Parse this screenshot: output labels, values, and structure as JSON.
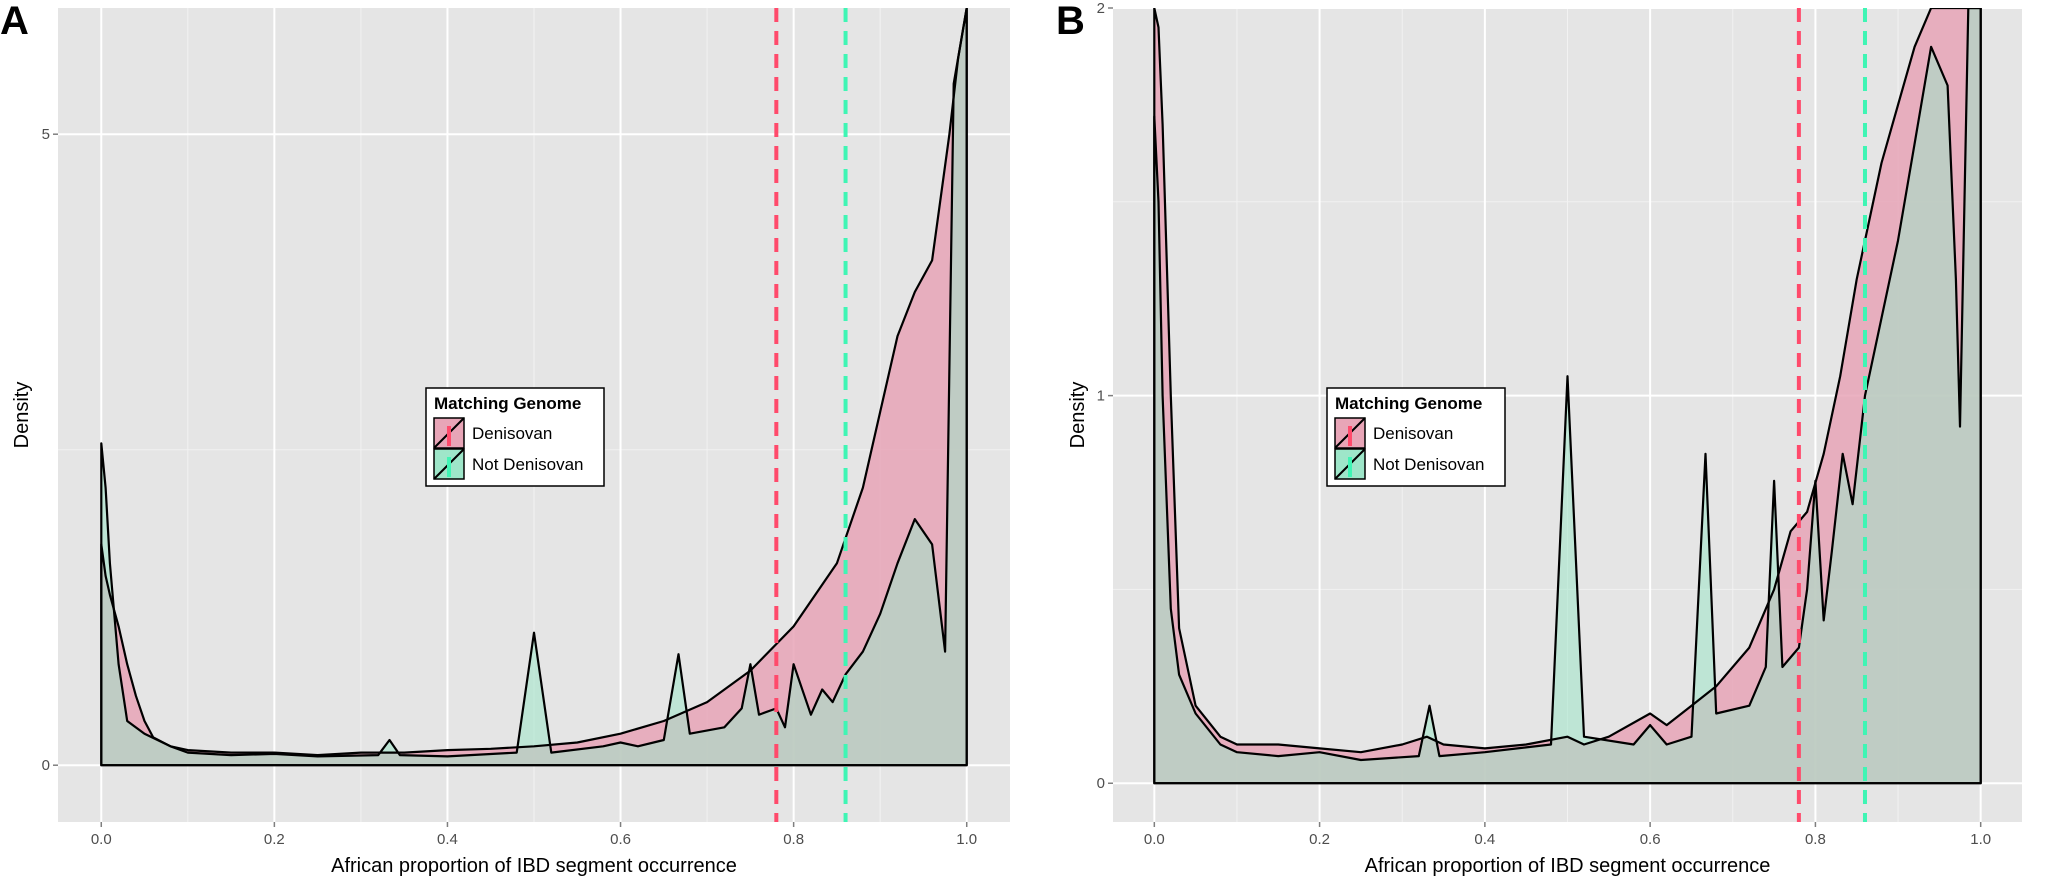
{
  "chart_data": [
    {
      "type": "area",
      "panel_label": "A",
      "xlabel": "African proportion of IBD segment occurrence",
      "ylabel": "Density",
      "xlim": [
        -0.05,
        1.05
      ],
      "ylim": [
        -0.45,
        6.0
      ],
      "x_ticks": [
        0.0,
        0.2,
        0.4,
        0.6,
        0.8,
        1.0
      ],
      "x_tick_labels": [
        "0.0",
        "0.2",
        "0.4",
        "0.6",
        "0.8",
        "1.0"
      ],
      "y_ticks": [
        0,
        5
      ],
      "y_tick_labels": [
        "0",
        "5"
      ],
      "grid": true,
      "legend": {
        "title": "Matching Genome",
        "entries": [
          "Denisovan",
          "Not Denisovan"
        ],
        "placement": "center"
      },
      "vlines": [
        {
          "x": 0.78,
          "color": "#ff4a6b",
          "style": "dashed"
        },
        {
          "x": 0.86,
          "color": "#3ff5b4",
          "style": "dashed"
        }
      ],
      "series": [
        {
          "name": "Denisovan",
          "color": "#e8a5b7",
          "x": [
            0,
            0.005,
            0.01,
            0.02,
            0.03,
            0.04,
            0.05,
            0.06,
            0.08,
            0.1,
            0.15,
            0.2,
            0.25,
            0.3,
            0.35,
            0.4,
            0.45,
            0.5,
            0.55,
            0.6,
            0.65,
            0.7,
            0.75,
            0.8,
            0.85,
            0.88,
            0.9,
            0.92,
            0.94,
            0.96,
            0.98,
            0.99,
            1.0
          ],
          "y": [
            1.75,
            1.5,
            1.35,
            1.1,
            0.8,
            0.55,
            0.35,
            0.22,
            0.15,
            0.12,
            0.1,
            0.1,
            0.08,
            0.1,
            0.1,
            0.12,
            0.13,
            0.15,
            0.18,
            0.25,
            0.35,
            0.5,
            0.75,
            1.1,
            1.6,
            2.2,
            2.8,
            3.4,
            3.75,
            4.0,
            5.0,
            5.6,
            6.0
          ]
        },
        {
          "name": "Not Denisovan",
          "color": "#9ee6c9",
          "x": [
            0,
            0.005,
            0.01,
            0.02,
            0.03,
            0.05,
            0.08,
            0.1,
            0.15,
            0.2,
            0.25,
            0.32,
            0.333,
            0.345,
            0.4,
            0.48,
            0.5,
            0.52,
            0.58,
            0.6,
            0.62,
            0.65,
            0.667,
            0.68,
            0.72,
            0.74,
            0.75,
            0.76,
            0.78,
            0.79,
            0.8,
            0.82,
            0.833,
            0.845,
            0.86,
            0.88,
            0.9,
            0.92,
            0.94,
            0.96,
            0.975,
            0.985,
            1.0
          ],
          "y": [
            2.55,
            2.2,
            1.6,
            0.8,
            0.35,
            0.25,
            0.15,
            0.1,
            0.08,
            0.09,
            0.07,
            0.08,
            0.2,
            0.08,
            0.07,
            0.1,
            1.05,
            0.1,
            0.15,
            0.18,
            0.15,
            0.2,
            0.88,
            0.25,
            0.3,
            0.45,
            0.8,
            0.4,
            0.45,
            0.3,
            0.8,
            0.4,
            0.6,
            0.5,
            0.72,
            0.9,
            1.2,
            1.6,
            1.95,
            1.75,
            0.9,
            5.4,
            6.0
          ]
        }
      ]
    },
    {
      "type": "area",
      "panel_label": "B",
      "xlabel": "African proportion of IBD segment occurrence",
      "ylabel": "Density",
      "xlim": [
        -0.05,
        1.05
      ],
      "ylim": [
        -0.1,
        2.0
      ],
      "x_ticks": [
        0.0,
        0.2,
        0.4,
        0.6,
        0.8,
        1.0
      ],
      "x_tick_labels": [
        "0.0",
        "0.2",
        "0.4",
        "0.6",
        "0.8",
        "1.0"
      ],
      "y_ticks": [
        0,
        1,
        2
      ],
      "y_tick_labels": [
        "0",
        "1",
        "2"
      ],
      "grid": true,
      "legend": {
        "title": "Matching Genome",
        "entries": [
          "Denisovan",
          "Not Denisovan"
        ],
        "placement": "center-left"
      },
      "vlines": [
        {
          "x": 0.78,
          "color": "#ff4a6b",
          "style": "dashed"
        },
        {
          "x": 0.86,
          "color": "#3ff5b4",
          "style": "dashed"
        }
      ],
      "series": [
        {
          "name": "Denisovan",
          "color": "#e8a5b7",
          "x": [
            0,
            0.005,
            0.01,
            0.02,
            0.03,
            0.05,
            0.08,
            0.1,
            0.15,
            0.2,
            0.25,
            0.3,
            0.33,
            0.35,
            0.4,
            0.45,
            0.5,
            0.52,
            0.55,
            0.6,
            0.62,
            0.65,
            0.68,
            0.72,
            0.75,
            0.77,
            0.79,
            0.81,
            0.83,
            0.85,
            0.88,
            0.9,
            0.92,
            0.94,
            0.96,
            0.975,
            0.985,
            1.0
          ],
          "y": [
            2.0,
            1.95,
            1.7,
            1.0,
            0.4,
            0.2,
            0.12,
            0.1,
            0.1,
            0.09,
            0.08,
            0.1,
            0.12,
            0.1,
            0.09,
            0.1,
            0.12,
            0.1,
            0.12,
            0.18,
            0.15,
            0.2,
            0.25,
            0.35,
            0.5,
            0.65,
            0.7,
            0.85,
            1.05,
            1.3,
            1.6,
            1.75,
            1.9,
            2.0,
            2.0,
            2.0,
            2.0,
            2.0
          ]
        },
        {
          "name": "Not Denisovan",
          "color": "#9ee6c9",
          "x": [
            0,
            0.005,
            0.01,
            0.02,
            0.03,
            0.05,
            0.08,
            0.1,
            0.15,
            0.2,
            0.25,
            0.32,
            0.333,
            0.345,
            0.4,
            0.48,
            0.5,
            0.52,
            0.58,
            0.6,
            0.62,
            0.65,
            0.667,
            0.68,
            0.72,
            0.74,
            0.75,
            0.76,
            0.78,
            0.79,
            0.8,
            0.81,
            0.82,
            0.833,
            0.845,
            0.86,
            0.88,
            0.9,
            0.92,
            0.94,
            0.96,
            0.97,
            0.975,
            0.985,
            1.0
          ],
          "y": [
            1.72,
            1.5,
            1.0,
            0.45,
            0.28,
            0.18,
            0.1,
            0.08,
            0.07,
            0.08,
            0.06,
            0.07,
            0.2,
            0.07,
            0.08,
            0.1,
            1.05,
            0.12,
            0.1,
            0.15,
            0.1,
            0.12,
            0.85,
            0.18,
            0.2,
            0.3,
            0.78,
            0.3,
            0.35,
            0.5,
            0.78,
            0.42,
            0.6,
            0.85,
            0.72,
            1.0,
            1.2,
            1.4,
            1.65,
            1.9,
            1.8,
            1.3,
            0.92,
            2.0,
            2.0
          ]
        }
      ]
    }
  ]
}
